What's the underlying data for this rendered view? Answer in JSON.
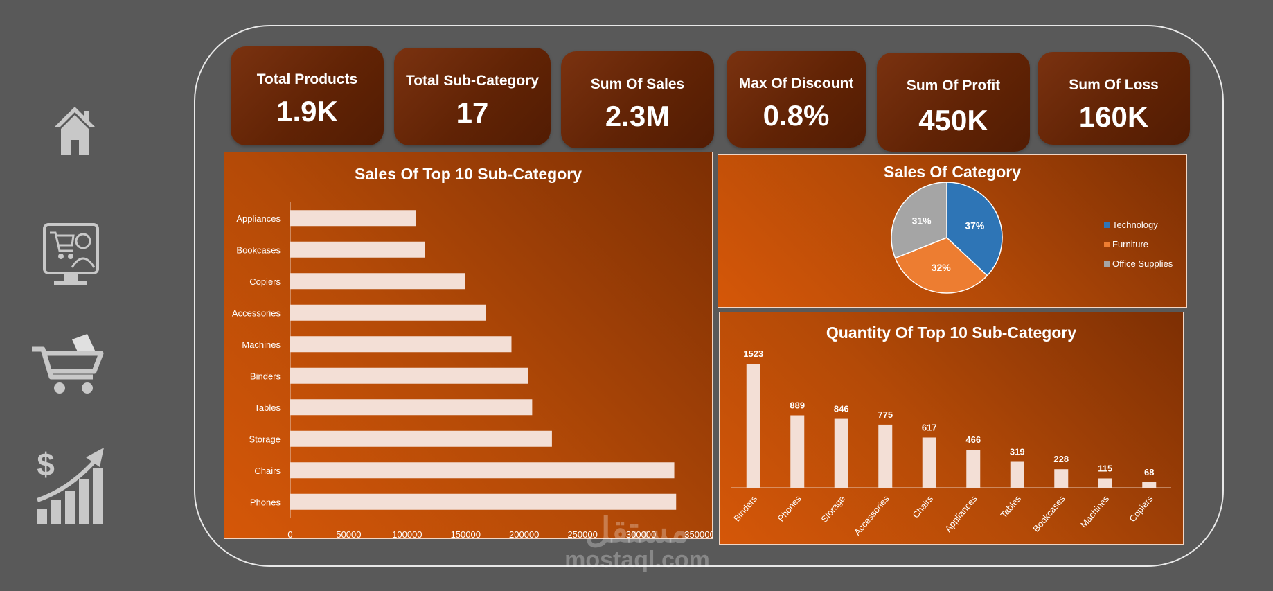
{
  "kpis": [
    {
      "title": "Total Products",
      "value": "1.9K"
    },
    {
      "title": "Total Sub-Category",
      "value": "17"
    },
    {
      "title": "Sum Of Sales",
      "value": "2.3M"
    },
    {
      "title": "Max Of Discount",
      "value": "0.8%"
    },
    {
      "title": "Sum Of Profit",
      "value": "450K"
    },
    {
      "title": "Sum Of Loss",
      "value": "160K"
    }
  ],
  "nav": [
    "home-icon",
    "shop-assistant-icon",
    "shopping-cart-icon",
    "dollar-growth-icon"
  ],
  "colors": {
    "bar_fill": "#f3dfd6",
    "tech": "#2e75b6",
    "furniture": "#ed7d31",
    "office": "#a5a5a5"
  },
  "watermark": {
    "arabic": "مستقل",
    "latin": "mostaql.com"
  },
  "chart_data": [
    {
      "type": "bar",
      "orientation": "horizontal",
      "title": "Sales Of Top 10 Sub-Category",
      "categories": [
        "Appliances",
        "Bookcases",
        "Copiers",
        "Accessories",
        "Machines",
        "Binders",
        "Tables",
        "Storage",
        "Chairs",
        "Phones"
      ],
      "values": [
        107500,
        114900,
        149500,
        167400,
        189200,
        203400,
        206900,
        223800,
        328400,
        330000
      ],
      "xlim": [
        0,
        350000
      ],
      "xticks": [
        0,
        50000,
        100000,
        150000,
        200000,
        250000,
        300000,
        350000
      ],
      "grid": false
    },
    {
      "type": "pie",
      "title": "Sales Of Category",
      "labels": [
        "Technology",
        "Furniture",
        "Office Supplies"
      ],
      "values": [
        37,
        32,
        31
      ],
      "value_labels": [
        "37%",
        "32%",
        "31%"
      ],
      "legend": "right"
    },
    {
      "type": "bar",
      "orientation": "vertical",
      "title": "Quantity Of Top 10 Sub-Category",
      "categories": [
        "Binders",
        "Phones",
        "Storage",
        "Accessories",
        "Chairs",
        "Appliances",
        "Tables",
        "Bookcases",
        "Machines",
        "Copiers"
      ],
      "values": [
        1523,
        889,
        846,
        775,
        617,
        466,
        319,
        228,
        115,
        68
      ],
      "data_labels": true,
      "grid": false
    }
  ]
}
